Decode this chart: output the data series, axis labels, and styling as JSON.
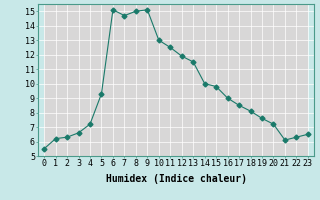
{
  "x": [
    0,
    1,
    2,
    3,
    4,
    5,
    6,
    7,
    8,
    9,
    10,
    11,
    12,
    13,
    14,
    15,
    16,
    17,
    18,
    19,
    20,
    21,
    22,
    23
  ],
  "y": [
    5.5,
    6.2,
    6.3,
    6.6,
    7.2,
    9.3,
    15.1,
    14.7,
    15.0,
    15.1,
    13.0,
    12.5,
    11.9,
    11.5,
    10.0,
    9.8,
    9.0,
    8.5,
    8.1,
    7.6,
    7.2,
    6.1,
    6.3,
    6.5
  ],
  "line_color": "#1a7a6a",
  "marker": "D",
  "marker_size": 2.5,
  "bg_color": "#c8e8e8",
  "plot_bg_color": "#c8e8e8",
  "grid_major_color": "#e8c8c8",
  "grid_minor_color": "#ffffff",
  "xlabel": "Humidex (Indice chaleur)",
  "xlabel_fontsize": 7,
  "tick_fontsize": 6,
  "ylim": [
    5,
    15.5
  ],
  "xlim": [
    -0.5,
    23.5
  ],
  "yticks": [
    5,
    6,
    7,
    8,
    9,
    10,
    11,
    12,
    13,
    14,
    15
  ],
  "xticks": [
    0,
    1,
    2,
    3,
    4,
    5,
    6,
    7,
    8,
    9,
    10,
    11,
    12,
    13,
    14,
    15,
    16,
    17,
    18,
    19,
    20,
    21,
    22,
    23
  ]
}
